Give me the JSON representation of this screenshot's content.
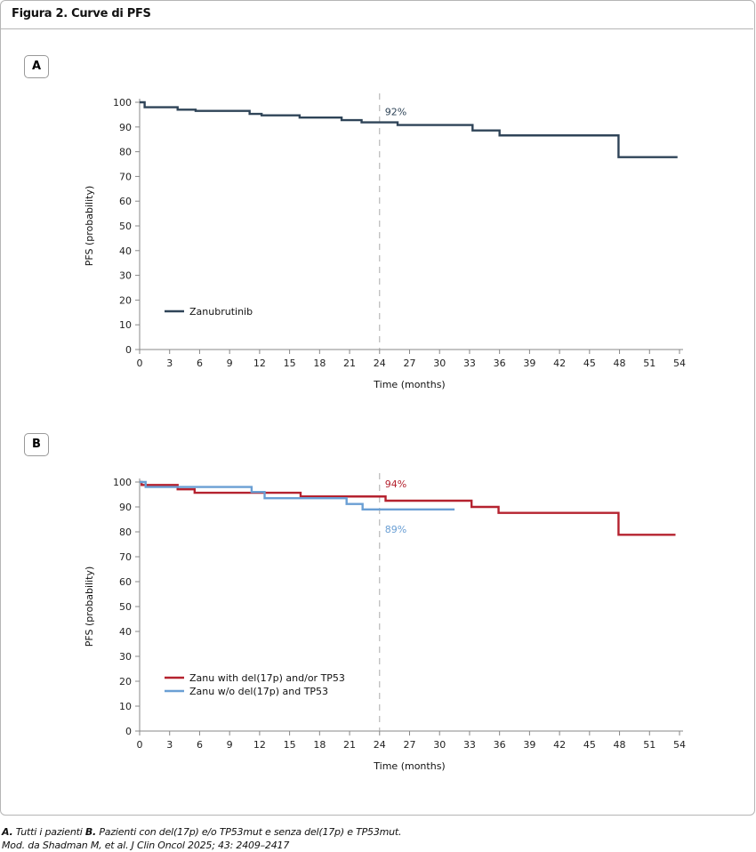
{
  "title": "Figura 2. Curve di PFS",
  "caption": {
    "line1_a": "A.",
    "line1_b": " Tutti i pazienti ",
    "line1_c": "B.",
    "line1_d": " Pazienti con del(17p) e/o TP53mut e senza del(17p) e TP53mut.",
    "line2": "Mod. da Shadman M, et al. J Clin Oncol 2025; 43: 2409–2417"
  },
  "chart_data": [
    {
      "type": "line",
      "panel": "A",
      "xlabel": "Time (months)",
      "ylabel": "PFS (probability)",
      "xlim": [
        0,
        54
      ],
      "ylim": [
        0,
        100
      ],
      "xticks": [
        0,
        3,
        6,
        9,
        12,
        15,
        18,
        21,
        24,
        27,
        30,
        33,
        36,
        39,
        42,
        45,
        48,
        51,
        54
      ],
      "yticks": [
        0,
        10,
        20,
        30,
        40,
        50,
        60,
        70,
        80,
        90,
        100
      ],
      "reference_line_x": 24,
      "series": [
        {
          "name": "Zanubrutinib",
          "color": "#2f4458",
          "label": "92%",
          "x": [
            0,
            0.5,
            3.8,
            5.6,
            11.0,
            12.2,
            16.0,
            20.2,
            22.2,
            25.8,
            33.3,
            36.0,
            47.9,
            53.8
          ],
          "y": [
            100,
            98,
            97,
            96.5,
            95.3,
            94.7,
            93.8,
            92.8,
            91.9,
            90.8,
            88.6,
            86.6,
            77.8,
            77.8
          ]
        }
      ]
    },
    {
      "type": "line",
      "panel": "B",
      "xlabel": "Time (months)",
      "ylabel": "PFS (probability)",
      "xlim": [
        0,
        54
      ],
      "ylim": [
        0,
        100
      ],
      "xticks": [
        0,
        3,
        6,
        9,
        12,
        15,
        18,
        21,
        24,
        27,
        30,
        33,
        36,
        39,
        42,
        45,
        48,
        51,
        54
      ],
      "yticks": [
        0,
        10,
        20,
        30,
        40,
        50,
        60,
        70,
        80,
        90,
        100
      ],
      "reference_line_x": 24,
      "series": [
        {
          "name": "Zanu with del(17p) and/or TP53",
          "color": "#b5222f",
          "label": "94%",
          "x": [
            0,
            0.2,
            3.8,
            5.5,
            16.1,
            24.6,
            33.2,
            35.9,
            47.9,
            53.6
          ],
          "y": [
            100,
            98.8,
            97.1,
            95.7,
            94.2,
            92.5,
            90,
            87.6,
            78.8,
            78.8
          ]
        },
        {
          "name": "Zanu w/o del(17p) and TP53",
          "color": "#6a9fd4",
          "label": "89%",
          "x": [
            0,
            0.6,
            11.2,
            12.5,
            20.7,
            22.3,
            31.5
          ],
          "y": [
            100,
            98,
            96,
            93.5,
            91.2,
            89,
            89
          ]
        }
      ]
    }
  ]
}
